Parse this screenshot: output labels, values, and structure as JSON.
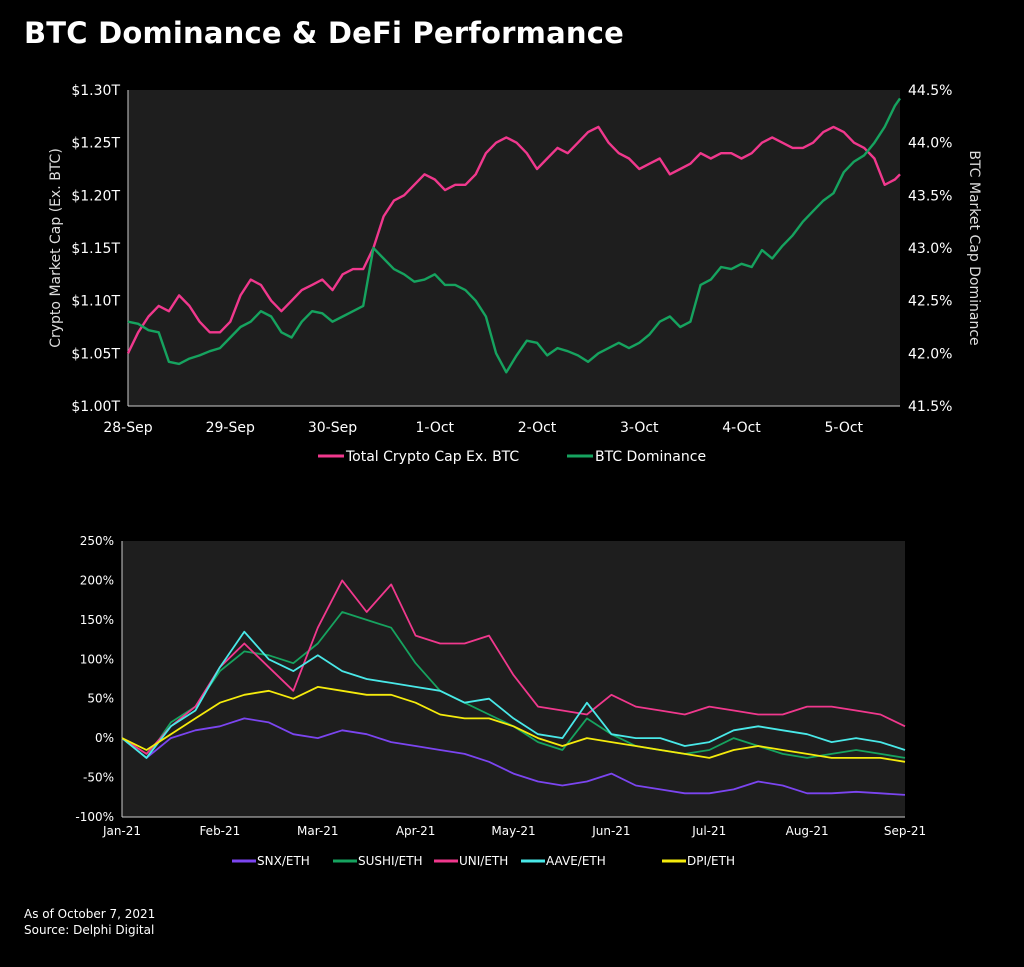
{
  "title": "BTC Dominance & DeFi Performance",
  "footer": {
    "as_of": "As of October 7, 2021",
    "source": "Source: Delphi Digital"
  },
  "colors": {
    "background": "#000000",
    "plot_background": "#1e1e1e",
    "text": "#ffffff",
    "pink": "#f0388d",
    "green": "#16a35f",
    "purple": "#7b45f0",
    "cyan": "#49e8e8",
    "yellow": "#f5eb0c"
  },
  "chart_data": [
    {
      "type": "line",
      "title": "",
      "ylabel": "Crypto Market Cap (Ex. BTC)",
      "y2label": "BTC Market Cap Dominance",
      "x_ticks": [
        "28-Sep",
        "29-Sep",
        "30-Sep",
        "1-Oct",
        "2-Oct",
        "3-Oct",
        "4-Oct",
        "5-Oct"
      ],
      "x_range": [
        0,
        7.55
      ],
      "ylim": [
        1.0,
        1.3
      ],
      "y_ticks": [
        "$1.00T",
        "$1.05T",
        "$1.10T",
        "$1.15T",
        "$1.20T",
        "$1.25T",
        "$1.30T"
      ],
      "y2lim": [
        41.5,
        44.5
      ],
      "y2_ticks": [
        "41.5%",
        "42.0%",
        "42.5%",
        "43.0%",
        "43.5%",
        "44.0%",
        "44.5%"
      ],
      "legend_position": "bottom",
      "series": [
        {
          "name": "Total Crypto Cap Ex. BTC",
          "axis": "left",
          "color": "#f0388d",
          "x": [
            0,
            0.1,
            0.2,
            0.3,
            0.4,
            0.5,
            0.6,
            0.7,
            0.8,
            0.9,
            1.0,
            1.1,
            1.2,
            1.3,
            1.4,
            1.5,
            1.6,
            1.7,
            1.8,
            1.9,
            2.0,
            2.1,
            2.2,
            2.3,
            2.4,
            2.5,
            2.6,
            2.7,
            2.8,
            2.9,
            3.0,
            3.1,
            3.2,
            3.3,
            3.4,
            3.5,
            3.6,
            3.7,
            3.8,
            3.9,
            4.0,
            4.1,
            4.2,
            4.3,
            4.4,
            4.5,
            4.6,
            4.7,
            4.8,
            4.9,
            5.0,
            5.1,
            5.2,
            5.3,
            5.4,
            5.5,
            5.6,
            5.7,
            5.8,
            5.9,
            6.0,
            6.1,
            6.2,
            6.3,
            6.4,
            6.5,
            6.6,
            6.7,
            6.8,
            6.9,
            7.0,
            7.1,
            7.2,
            7.3,
            7.4,
            7.5,
            7.55
          ],
          "values": [
            1.05,
            1.07,
            1.085,
            1.095,
            1.09,
            1.105,
            1.095,
            1.08,
            1.07,
            1.07,
            1.08,
            1.105,
            1.12,
            1.115,
            1.1,
            1.09,
            1.1,
            1.11,
            1.115,
            1.12,
            1.11,
            1.125,
            1.13,
            1.13,
            1.15,
            1.18,
            1.195,
            1.2,
            1.21,
            1.22,
            1.215,
            1.205,
            1.21,
            1.21,
            1.22,
            1.24,
            1.25,
            1.255,
            1.25,
            1.24,
            1.225,
            1.235,
            1.245,
            1.24,
            1.25,
            1.26,
            1.265,
            1.25,
            1.24,
            1.235,
            1.225,
            1.23,
            1.235,
            1.22,
            1.225,
            1.23,
            1.24,
            1.235,
            1.24,
            1.24,
            1.235,
            1.24,
            1.25,
            1.255,
            1.25,
            1.245,
            1.245,
            1.25,
            1.26,
            1.265,
            1.26,
            1.25,
            1.245,
            1.235,
            1.21,
            1.215,
            1.22
          ]
        },
        {
          "name": "BTC Dominance",
          "axis": "right",
          "color": "#16a35f",
          "x": [
            0,
            0.1,
            0.2,
            0.3,
            0.4,
            0.5,
            0.6,
            0.7,
            0.8,
            0.9,
            1.0,
            1.1,
            1.2,
            1.3,
            1.4,
            1.5,
            1.6,
            1.7,
            1.8,
            1.9,
            2.0,
            2.1,
            2.2,
            2.3,
            2.4,
            2.5,
            2.6,
            2.7,
            2.8,
            2.9,
            3.0,
            3.1,
            3.2,
            3.3,
            3.4,
            3.5,
            3.6,
            3.7,
            3.8,
            3.9,
            4.0,
            4.1,
            4.2,
            4.3,
            4.4,
            4.5,
            4.6,
            4.7,
            4.8,
            4.9,
            5.0,
            5.1,
            5.2,
            5.3,
            5.4,
            5.5,
            5.6,
            5.7,
            5.8,
            5.9,
            6.0,
            6.1,
            6.2,
            6.3,
            6.4,
            6.5,
            6.6,
            6.7,
            6.8,
            6.9,
            7.0,
            7.1,
            7.2,
            7.3,
            7.4,
            7.5,
            7.55
          ],
          "values": [
            42.3,
            42.28,
            42.22,
            42.2,
            41.92,
            41.9,
            41.95,
            41.98,
            42.02,
            42.05,
            42.15,
            42.25,
            42.3,
            42.4,
            42.35,
            42.2,
            42.15,
            42.3,
            42.4,
            42.38,
            42.3,
            42.35,
            42.4,
            42.45,
            43.0,
            42.9,
            42.8,
            42.75,
            42.68,
            42.7,
            42.75,
            42.65,
            42.65,
            42.6,
            42.5,
            42.35,
            42.0,
            41.82,
            41.98,
            42.12,
            42.1,
            41.98,
            42.05,
            42.02,
            41.98,
            41.92,
            42.0,
            42.05,
            42.1,
            42.05,
            42.1,
            42.18,
            42.3,
            42.35,
            42.25,
            42.3,
            42.65,
            42.7,
            42.82,
            42.8,
            42.85,
            42.82,
            42.98,
            42.9,
            43.02,
            43.12,
            43.25,
            43.35,
            43.45,
            43.52,
            43.72,
            43.82,
            43.88,
            44.0,
            44.15,
            44.35,
            44.42
          ]
        }
      ]
    },
    {
      "type": "line",
      "title": "",
      "x_ticks": [
        "Jan-21",
        "Feb-21",
        "Mar-21",
        "Apr-21",
        "May-21",
        "Jun-21",
        "Jul-21",
        "Aug-21",
        "Sep-21"
      ],
      "x_range": [
        0,
        8
      ],
      "ylim": [
        -100,
        250
      ],
      "y_ticks": [
        "-100%",
        "-50%",
        "0%",
        "50%",
        "100%",
        "150%",
        "200%",
        "250%"
      ],
      "legend_position": "bottom",
      "series": [
        {
          "name": "SNX/ETH",
          "color": "#7b45f0",
          "x": [
            0,
            0.25,
            0.5,
            0.75,
            1.0,
            1.25,
            1.5,
            1.75,
            2.0,
            2.25,
            2.5,
            2.75,
            3.0,
            3.25,
            3.5,
            3.75,
            4.0,
            4.25,
            4.5,
            4.75,
            5.0,
            5.25,
            5.5,
            5.75,
            6.0,
            6.25,
            6.5,
            6.75,
            7.0,
            7.25,
            7.5,
            7.75,
            8.0
          ],
          "values": [
            0,
            -25,
            0,
            10,
            15,
            25,
            20,
            5,
            0,
            10,
            5,
            -5,
            -10,
            -15,
            -20,
            -30,
            -45,
            -55,
            -60,
            -55,
            -45,
            -60,
            -65,
            -70,
            -70,
            -65,
            -55,
            -60,
            -70,
            -70,
            -68,
            -70,
            -72
          ]
        },
        {
          "name": "SUSHI/ETH",
          "color": "#16a35f",
          "x": [
            0,
            0.25,
            0.5,
            0.75,
            1.0,
            1.25,
            1.5,
            1.75,
            2.0,
            2.25,
            2.5,
            2.75,
            3.0,
            3.25,
            3.5,
            3.75,
            4.0,
            4.25,
            4.5,
            4.75,
            5.0,
            5.25,
            5.5,
            5.75,
            6.0,
            6.25,
            6.5,
            6.75,
            7.0,
            7.25,
            7.5,
            7.75,
            8.0
          ],
          "values": [
            0,
            -25,
            20,
            40,
            85,
            110,
            105,
            95,
            120,
            160,
            150,
            140,
            95,
            60,
            45,
            30,
            15,
            -5,
            -15,
            25,
            5,
            -10,
            -15,
            -20,
            -15,
            0,
            -10,
            -20,
            -25,
            -20,
            -15,
            -20,
            -25
          ]
        },
        {
          "name": "UNI/ETH",
          "color": "#f0388d",
          "x": [
            0,
            0.25,
            0.5,
            0.75,
            1.0,
            1.25,
            1.5,
            1.75,
            2.0,
            2.25,
            2.5,
            2.75,
            3.0,
            3.25,
            3.5,
            3.75,
            4.0,
            4.25,
            4.5,
            4.75,
            5.0,
            5.25,
            5.5,
            5.75,
            6.0,
            6.25,
            6.5,
            6.75,
            7.0,
            7.25,
            7.5,
            7.75,
            8.0
          ],
          "values": [
            0,
            -20,
            15,
            40,
            90,
            120,
            90,
            60,
            140,
            200,
            160,
            195,
            130,
            120,
            120,
            130,
            80,
            40,
            35,
            30,
            55,
            40,
            35,
            30,
            40,
            35,
            30,
            30,
            40,
            40,
            35,
            30,
            15
          ]
        },
        {
          "name": "AAVE/ETH",
          "color": "#49e8e8",
          "x": [
            0,
            0.25,
            0.5,
            0.75,
            1.0,
            1.25,
            1.5,
            1.75,
            2.0,
            2.25,
            2.5,
            2.75,
            3.0,
            3.25,
            3.5,
            3.75,
            4.0,
            4.25,
            4.5,
            4.75,
            5.0,
            5.25,
            5.5,
            5.75,
            6.0,
            6.25,
            6.5,
            6.75,
            7.0,
            7.25,
            7.5,
            7.75,
            8.0
          ],
          "values": [
            0,
            -25,
            15,
            35,
            90,
            135,
            100,
            85,
            105,
            85,
            75,
            70,
            65,
            60,
            45,
            50,
            25,
            5,
            0,
            45,
            5,
            0,
            0,
            -10,
            -5,
            10,
            15,
            10,
            5,
            -5,
            0,
            -5,
            -15
          ]
        },
        {
          "name": "DPI/ETH",
          "color": "#f5eb0c",
          "x": [
            0,
            0.25,
            0.5,
            0.75,
            1.0,
            1.25,
            1.5,
            1.75,
            2.0,
            2.25,
            2.5,
            2.75,
            3.0,
            3.25,
            3.5,
            3.75,
            4.0,
            4.25,
            4.5,
            4.75,
            5.0,
            5.25,
            5.5,
            5.75,
            6.0,
            6.25,
            6.5,
            6.75,
            7.0,
            7.25,
            7.5,
            7.75,
            8.0
          ],
          "values": [
            0,
            -15,
            5,
            25,
            45,
            55,
            60,
            50,
            65,
            60,
            55,
            55,
            45,
            30,
            25,
            25,
            15,
            0,
            -10,
            0,
            -5,
            -10,
            -15,
            -20,
            -25,
            -15,
            -10,
            -15,
            -20,
            -25,
            -25,
            -25,
            -30
          ]
        }
      ]
    }
  ]
}
